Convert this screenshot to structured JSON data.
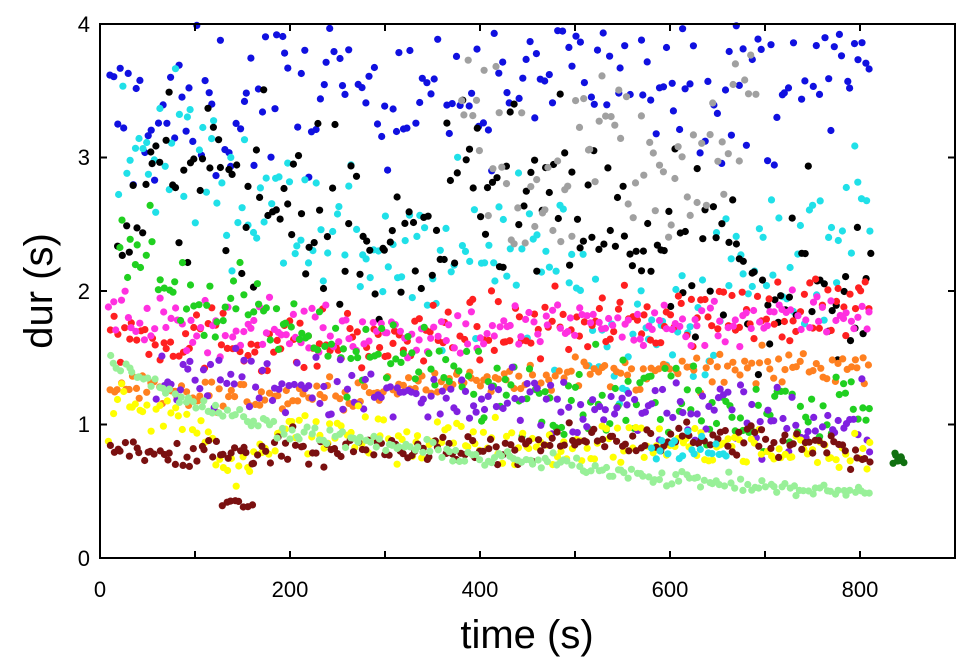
{
  "chart_data": {
    "type": "scatter",
    "title": "",
    "xlabel": "time (s)",
    "ylabel": "dur (s)",
    "xlim": [
      0,
      900
    ],
    "ylim": [
      0,
      4
    ],
    "xticks": [
      0,
      200,
      400,
      600,
      800
    ],
    "yticks": [
      0,
      1,
      2,
      3,
      4
    ],
    "xtick_labels": [
      "0",
      "200",
      "400",
      "600",
      "800"
    ],
    "ytick_labels": [
      "0",
      "1",
      "2",
      "3",
      "4"
    ],
    "grid": false,
    "legend": "none",
    "series": [
      {
        "color": "#1010e0",
        "trend": [
          [
            10,
            3.3
          ],
          [
            100,
            3.3
          ],
          [
            200,
            3.5
          ],
          [
            300,
            3.6
          ],
          [
            400,
            3.5
          ],
          [
            500,
            3.7
          ],
          [
            600,
            3.7
          ],
          [
            700,
            3.6
          ],
          [
            810,
            3.7
          ]
        ],
        "spread": 0.3
      },
      {
        "color": "#20e0e8",
        "trend": [
          [
            20,
            3.2
          ],
          [
            120,
            2.9
          ],
          [
            200,
            2.6
          ],
          [
            250,
            2.5
          ],
          [
            350,
            2.1
          ],
          [
            400,
            2.3
          ],
          [
            450,
            2.4
          ],
          [
            550,
            1.6
          ],
          [
            600,
            1.7
          ],
          [
            700,
            2.2
          ],
          [
            810,
            2.6
          ]
        ],
        "spread": 0.3
      },
      {
        "color": "#000000",
        "trend": [
          [
            20,
            2.8
          ],
          [
            100,
            2.8
          ],
          [
            200,
            2.7
          ],
          [
            250,
            2.5
          ],
          [
            300,
            2.2
          ],
          [
            400,
            2.7
          ],
          [
            500,
            2.6
          ],
          [
            600,
            2.2
          ],
          [
            700,
            2.1
          ],
          [
            810,
            2.0
          ]
        ],
        "spread": 0.35
      },
      {
        "color": "#ff2020",
        "trend": [
          [
            10,
            1.7
          ],
          [
            100,
            1.65
          ],
          [
            200,
            1.6
          ],
          [
            300,
            1.6
          ],
          [
            400,
            1.7
          ],
          [
            500,
            1.75
          ],
          [
            600,
            1.8
          ],
          [
            700,
            1.85
          ],
          [
            810,
            1.9
          ]
        ],
        "spread": 0.12
      },
      {
        "color": "#ff30e0",
        "trend": [
          [
            10,
            1.8
          ],
          [
            100,
            1.75
          ],
          [
            200,
            1.72
          ],
          [
            300,
            1.7
          ],
          [
            400,
            1.7
          ],
          [
            500,
            1.75
          ],
          [
            600,
            1.75
          ],
          [
            700,
            1.8
          ],
          [
            810,
            1.85
          ]
        ],
        "spread": 0.1
      },
      {
        "color": "#ff8020",
        "trend": [
          [
            10,
            1.3
          ],
          [
            100,
            1.22
          ],
          [
            200,
            1.2
          ],
          [
            300,
            1.25
          ],
          [
            400,
            1.35
          ],
          [
            500,
            1.38
          ],
          [
            600,
            1.38
          ],
          [
            700,
            1.42
          ],
          [
            810,
            1.45
          ]
        ],
        "spread": 0.06
      },
      {
        "color": "#20d020",
        "trend": [
          [
            20,
            2.5
          ],
          [
            80,
            2.0
          ],
          [
            200,
            1.7
          ],
          [
            300,
            1.5
          ],
          [
            400,
            1.3
          ],
          [
            500,
            1.25
          ],
          [
            600,
            1.2
          ],
          [
            700,
            1.15
          ],
          [
            810,
            1.1
          ]
        ],
        "spread": 0.15
      },
      {
        "color": "#8020e0",
        "trend": [
          [
            60,
            1.4
          ],
          [
            200,
            1.3
          ],
          [
            300,
            1.2
          ],
          [
            400,
            1.15
          ],
          [
            500,
            1.1
          ],
          [
            600,
            1.1
          ],
          [
            700,
            1.05
          ],
          [
            810,
            1.0
          ]
        ],
        "spread": 0.12
      },
      {
        "color": "#ffff00",
        "trend": [
          [
            10,
            1.2
          ],
          [
            100,
            1.0
          ],
          [
            135,
            0.6
          ],
          [
            200,
            0.95
          ],
          [
            300,
            0.9
          ],
          [
            400,
            0.9
          ],
          [
            500,
            0.85
          ],
          [
            600,
            0.85
          ],
          [
            700,
            0.8
          ],
          [
            810,
            0.8
          ]
        ],
        "spread": 0.08
      },
      {
        "color": "#7a1010",
        "trend": [
          [
            10,
            0.82
          ],
          [
            60,
            0.78
          ],
          [
            150,
            0.78
          ],
          [
            200,
            0.85
          ],
          [
            300,
            0.8
          ],
          [
            400,
            0.8
          ],
          [
            500,
            0.88
          ],
          [
            600,
            0.9
          ],
          [
            700,
            0.88
          ],
          [
            810,
            0.78
          ]
        ],
        "spread": 0.06
      },
      {
        "color": "#7a1010",
        "trend": [
          [
            130,
            0.42
          ],
          [
            160,
            0.39
          ]
        ],
        "spread": 0.02
      },
      {
        "color": "#98f098",
        "trend": [
          [
            10,
            1.5
          ],
          [
            100,
            1.15
          ],
          [
            200,
            0.95
          ],
          [
            300,
            0.85
          ],
          [
            400,
            0.75
          ],
          [
            500,
            0.7
          ],
          [
            600,
            0.6
          ],
          [
            700,
            0.53
          ],
          [
            810,
            0.48
          ]
        ],
        "spread": 0.03
      },
      {
        "color": "#20e0e8",
        "trend": [
          [
            580,
            0.85
          ],
          [
            660,
            0.8
          ]
        ],
        "spread": 0.06
      },
      {
        "color": "#a0a0a0",
        "trend": [
          [
            380,
            3.6
          ],
          [
            450,
            2.6
          ],
          [
            520,
            3.3
          ],
          [
            600,
            2.8
          ],
          [
            690,
            3.4
          ]
        ],
        "spread": 0.3
      },
      {
        "color": "#107010",
        "trend": [
          [
            835,
            0.8
          ],
          [
            845,
            0.72
          ]
        ],
        "spread": 0.02
      }
    ]
  }
}
